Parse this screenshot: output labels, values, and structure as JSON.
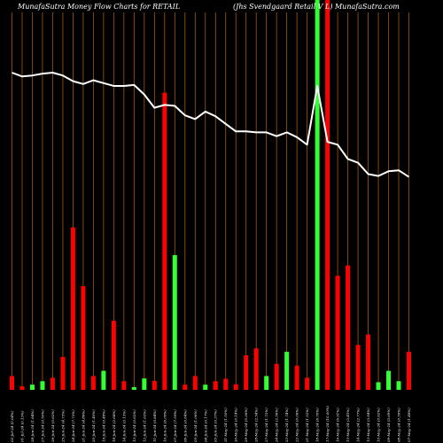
{
  "header": {
    "left": "MunafaSutra  Money Flow  Charts for RETAIL",
    "right": "(Jhs Svendgaard Retail V L) MunafaSutra.com"
  },
  "chart_data": {
    "type": "bar",
    "series_line": {
      "name": "",
      "values": [
        100,
        96,
        97,
        99,
        100,
        97,
        91,
        88,
        92,
        89,
        86,
        86,
        87,
        77,
        63,
        66,
        65,
        55,
        51,
        59,
        54,
        46,
        38,
        38,
        37,
        37,
        33,
        37,
        32,
        24,
        86,
        27,
        24,
        9,
        5,
        -7,
        -9,
        -4,
        -3,
        -10
      ]
    },
    "bars": [
      {
        "label": "02-Jul-24 (0.04%)",
        "value": 4,
        "color": "red"
      },
      {
        "label": "01-Jul-24 (0.13%)",
        "value": 1,
        "color": "red"
      },
      {
        "label": "28-Jun-24 (1.84%)",
        "value": 1.5,
        "color": "green"
      },
      {
        "label": "27-Jun-24 (0.50%)",
        "value": 2.5,
        "color": "green"
      },
      {
        "label": "26-Jun-24 (0.62%)",
        "value": 3.5,
        "color": "red"
      },
      {
        "label": "25-Jun-24 (4.73%)",
        "value": 9.5,
        "color": "red"
      },
      {
        "label": "24-Jun-24 (7.73%)",
        "value": 47,
        "color": "red"
      },
      {
        "label": "21-Jun-24 (4.86%)",
        "value": 30,
        "color": "red"
      },
      {
        "label": "20-Jun-24 (1.40%)",
        "value": 4,
        "color": "red"
      },
      {
        "label": "19-Jun-24 (0.48%)",
        "value": 5.5,
        "color": "green"
      },
      {
        "label": "18-Jun-24 (2.68%)",
        "value": 20,
        "color": "red"
      },
      {
        "label": "14-Jun-24 (0.13%)",
        "value": 2.5,
        "color": "red"
      },
      {
        "label": "13-Jun-24 (0.62%)",
        "value": 0.8,
        "color": "green"
      },
      {
        "label": "12-Jun-24 (1.63%)",
        "value": 3.3,
        "color": "green"
      },
      {
        "label": "11-Jun-24 (0.84%)",
        "value": 2.6,
        "color": "red"
      },
      {
        "label": "10-Jun-24 (6.09%)",
        "value": 86,
        "color": "red"
      },
      {
        "label": "07-Jun-24 (7.59%)",
        "value": 39,
        "color": "green"
      },
      {
        "label": "06-Jun-24 (0.64%)",
        "value": 1.5,
        "color": "red"
      },
      {
        "label": "05-Jun-24 (1.06%)",
        "value": 4,
        "color": "red"
      },
      {
        "label": "04-Jun-24 (0.17%)",
        "value": 1.5,
        "color": "green"
      },
      {
        "label": "03-Jun-24 (0.37%)",
        "value": 2.5,
        "color": "red"
      },
      {
        "label": "31-May-24 (1.50%)",
        "value": 3.2,
        "color": "red"
      },
      {
        "label": "30-May-24 (0.14%)",
        "value": 1.6,
        "color": "red"
      },
      {
        "label": "29-May-24 (0.36%)",
        "value": 10,
        "color": "red"
      },
      {
        "label": "28-May-24 (2.54%)",
        "value": 12,
        "color": "red"
      },
      {
        "label": "27-May-24 (1.73%)",
        "value": 4,
        "color": "green"
      },
      {
        "label": "24-May-24 (2.56%)",
        "value": 7.5,
        "color": "red"
      },
      {
        "label": "23-May-24 (1.74%)",
        "value": 11,
        "color": "green"
      },
      {
        "label": "22-May-24 (0.06%)",
        "value": 7,
        "color": "red"
      },
      {
        "label": "21-May-24 (1.52%)",
        "value": 3.5,
        "color": "red"
      },
      {
        "label": "18-May-24 (6.70%)",
        "value": 113,
        "color": "green"
      },
      {
        "label": "17-May-24 (10.00%)",
        "value": 113,
        "color": "red"
      },
      {
        "label": "16-May-24 (6.91%)",
        "value": 33,
        "color": "red"
      },
      {
        "label": "15-May-24 (3.45%)",
        "value": 36,
        "color": "red"
      },
      {
        "label": "14-May-24 (2.77%)",
        "value": 13,
        "color": "red"
      },
      {
        "label": "13-May-24 (3.94%)",
        "value": 16,
        "color": "red"
      },
      {
        "label": "10-May-24 (0.62%)",
        "value": 2.2,
        "color": "green"
      },
      {
        "label": "09-May-24 (0.69%)",
        "value": 5.5,
        "color": "green"
      },
      {
        "label": "08-May-24 (0.59%)",
        "value": 2.5,
        "color": "green"
      },
      {
        "label": "07-May-24 (1.48%)",
        "value": 11,
        "color": "red"
      }
    ],
    "colors": {
      "red": "#ff0000",
      "green": "#33ff33",
      "line": "#ffffff",
      "grid": "#a8590e",
      "background": "#000000"
    },
    "grid": true
  }
}
